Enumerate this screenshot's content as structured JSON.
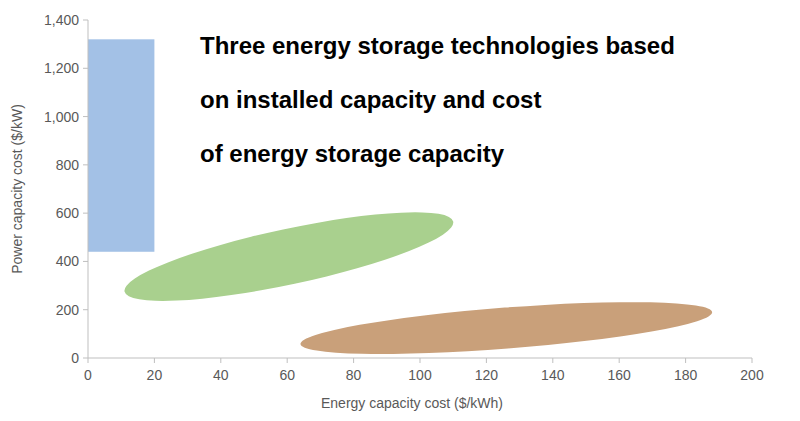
{
  "chart_data": {
    "type": "region",
    "title": [
      "Three energy storage technologies based",
      "on installed capacity and cost",
      "of energy storage capacity"
    ],
    "x_label": "Energy capacity cost ($/kWh)",
    "y_label": "Power capacity cost ($/kW)",
    "xlim": [
      0,
      200
    ],
    "xticks": [
      0,
      20,
      40,
      60,
      80,
      100,
      120,
      140,
      160,
      180,
      200
    ],
    "ylim": [
      0,
      1400
    ],
    "yticks": [
      0,
      200,
      400,
      600,
      800,
      {
        "value": 1000,
        "label": "1,000"
      },
      {
        "value": 1200,
        "label": "1,200"
      },
      {
        "value": 1400,
        "label": "1,400"
      }
    ],
    "grid": false,
    "series": [
      {
        "type": "rectangle",
        "color": "#a3c1e6",
        "x": [
          0,
          20
        ],
        "y": [
          440,
          1320
        ]
      },
      {
        "type": "ellipse",
        "color": "#a9d08e",
        "x": [
          11,
          110
        ],
        "y": [
          275,
          565
        ],
        "minor_radius": 115
      },
      {
        "type": "ellipse",
        "color": "#c9a07a",
        "x": [
          64,
          188
        ],
        "y": [
          58,
          190
        ],
        "minor_radius": 85
      }
    ]
  }
}
